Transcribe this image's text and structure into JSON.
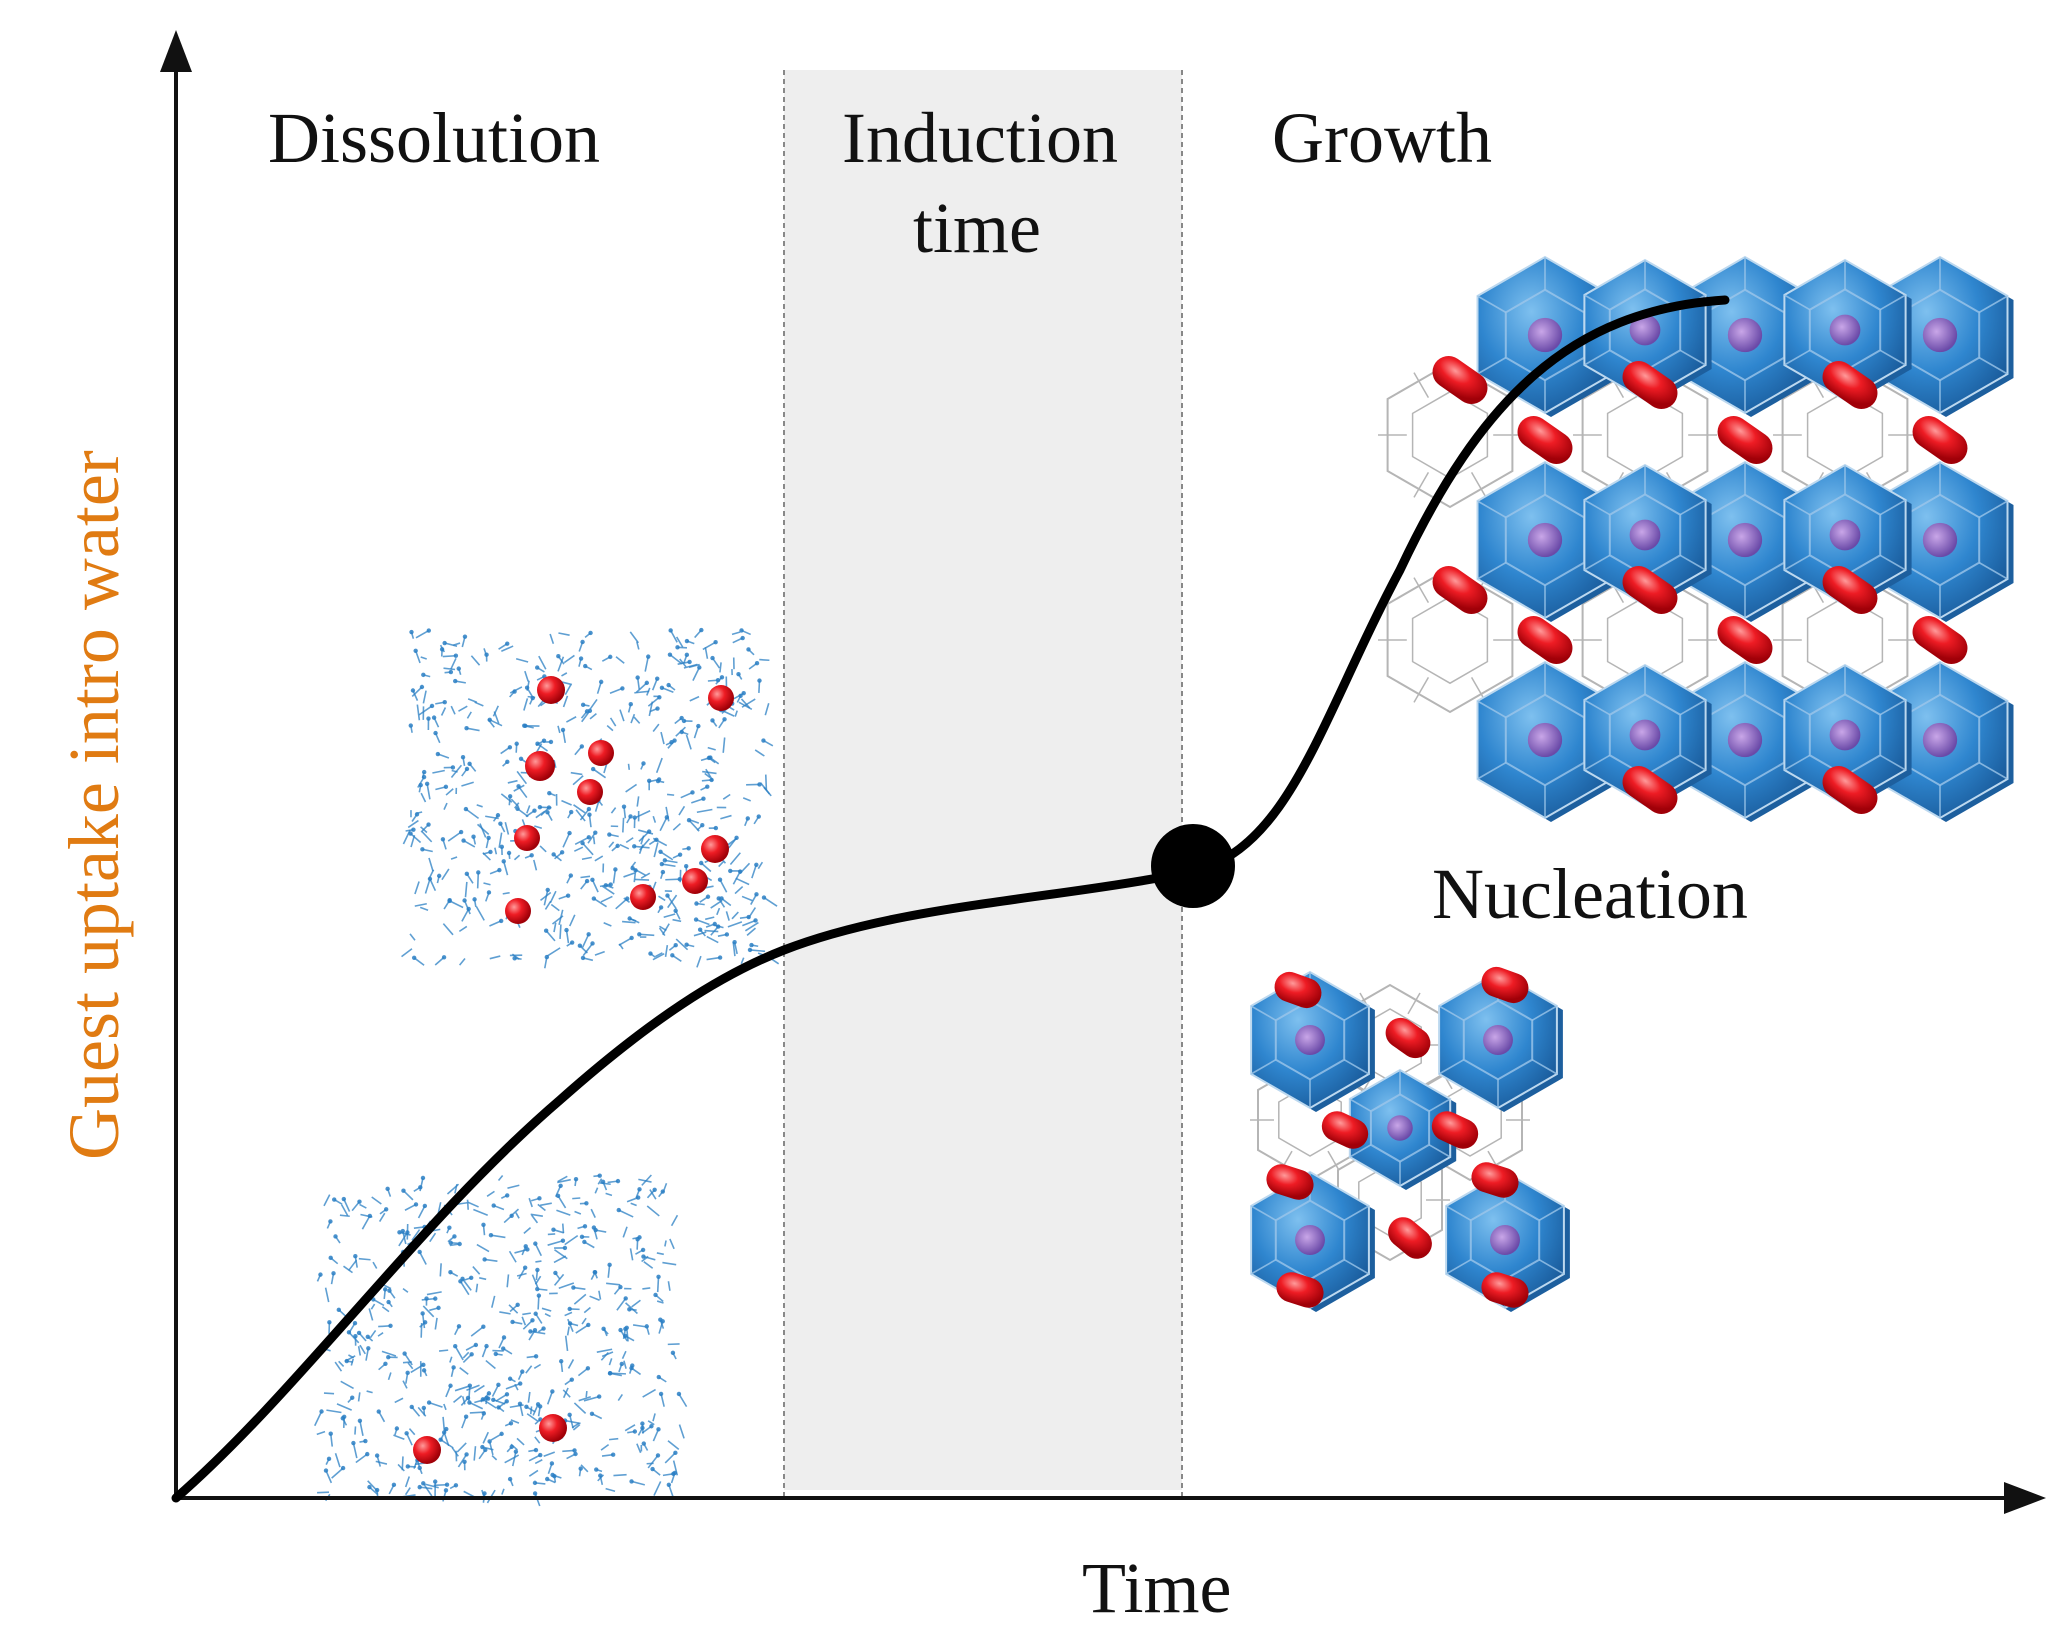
{
  "labels": {
    "dissolution": "Dissolution",
    "induction_line1": "Induction",
    "induction_line2": "time",
    "growth": "Growth",
    "nucleation": "Nucleation"
  },
  "axes": {
    "x_label": "Time",
    "y_label": "Guest uptake intro water"
  },
  "colors": {
    "axis": "#111111",
    "curve": "#000000",
    "ylabel": "#e07b12",
    "induction_band": "#eeeeee",
    "guest_molecule": "#e8141c",
    "water_network": "#2a7fc4",
    "cage_fill": "#2f86cf",
    "cage_wire": "#b5b5b5"
  },
  "icons": {
    "dissolved_guest_clusters": "molecule-cluster-icon",
    "hydrate_lattice": "hydrate-cage-lattice-icon"
  }
}
